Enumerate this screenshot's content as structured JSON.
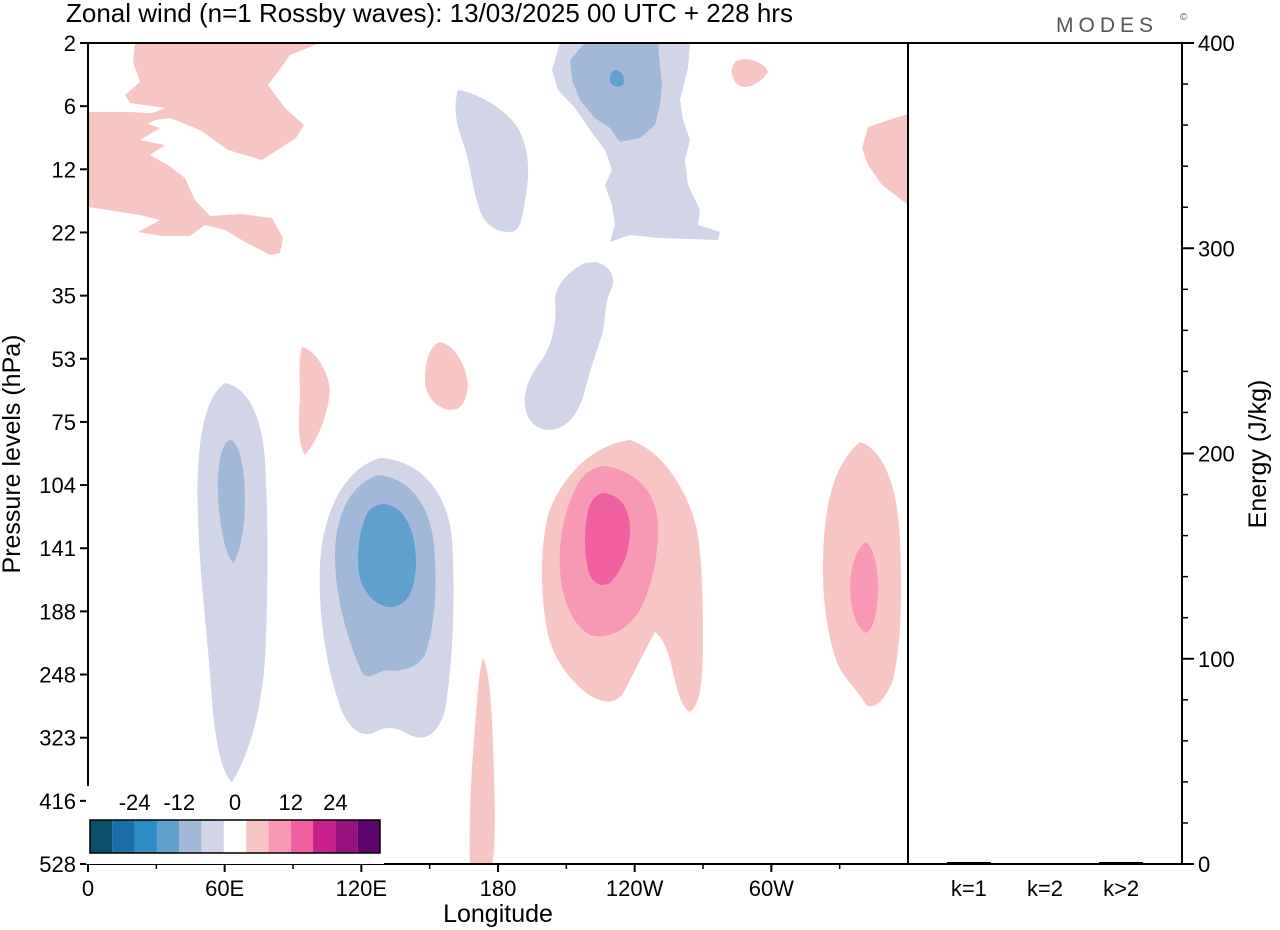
{
  "chart_data": {
    "type": "contour",
    "title": "Zonal wind (n=1 Rossby waves):  13/03/2025  00 UTC  + 228 hrs",
    "brand": "MODES",
    "brand_mark": "©",
    "xlabel": "Longitude",
    "ylabel": "Pressure levels (hPa)",
    "y2label": "Energy (J/kg)",
    "x_ticks": [
      "0",
      "60E",
      "120E",
      "180",
      "120W",
      "60W"
    ],
    "x_tick_degrees": [
      0,
      60,
      120,
      180,
      240,
      300
    ],
    "x_range_degrees": [
      0,
      360
    ],
    "y_ticks": [
      "2",
      "6",
      "12",
      "22",
      "35",
      "53",
      "75",
      "104",
      "141",
      "188",
      "248",
      "323",
      "416",
      "528"
    ],
    "y_order": "top-to-bottom",
    "colorbar": {
      "labels": [
        "-24",
        "-12",
        "0",
        "12",
        "24"
      ],
      "label_values": [
        -24,
        -12,
        0,
        12,
        24
      ],
      "levels": [
        -30,
        -24,
        -18,
        -12,
        -6,
        -3,
        3,
        6,
        12,
        18,
        24,
        30
      ],
      "colors": [
        "#0b4f6c",
        "#1b6ea6",
        "#2d8cc4",
        "#62a0cc",
        "#a2b8d8",
        "#d2d4e8",
        "#ffffff",
        "#f8c5c5",
        "#f799b5",
        "#f060a0",
        "#c8208c",
        "#96107e",
        "#5c046c"
      ]
    },
    "features": [
      {
        "sign": "negative",
        "max_abs": 12,
        "lon": [
          60,
          72
        ],
        "p": [
          75,
          416
        ]
      },
      {
        "sign": "negative",
        "max_abs": 18,
        "lon": [
          105,
          160
        ],
        "p": [
          90,
          300
        ]
      },
      {
        "sign": "negative",
        "max_abs": 3,
        "lon": [
          160,
          195
        ],
        "p": [
          5,
          20
        ]
      },
      {
        "sign": "negative",
        "max_abs": 3,
        "lon": [
          190,
          230
        ],
        "p": [
          30,
          80
        ]
      },
      {
        "sign": "negative",
        "max_abs": 12,
        "lon": [
          200,
          265
        ],
        "p": [
          2,
          20
        ]
      },
      {
        "sign": "positive",
        "max_abs": 18,
        "lon": [
          200,
          270
        ],
        "p": [
          90,
          330
        ]
      },
      {
        "sign": "positive",
        "max_abs": 12,
        "lon": [
          325,
          355
        ],
        "p": [
          110,
          300
        ]
      },
      {
        "sign": "positive",
        "max_abs": 3,
        "lon": [
          0,
          90
        ],
        "p": [
          2,
          22
        ]
      },
      {
        "sign": "positive",
        "max_abs": 3,
        "lon": [
          95,
          110
        ],
        "p": [
          50,
          100
        ]
      },
      {
        "sign": "positive",
        "max_abs": 3,
        "lon": [
          145,
          165
        ],
        "p": [
          50,
          80
        ]
      },
      {
        "sign": "positive",
        "max_abs": 3,
        "lon": [
          167,
          178
        ],
        "p": [
          250,
          528
        ]
      },
      {
        "sign": "positive",
        "max_abs": 3,
        "lon": [
          340,
          360
        ],
        "p": [
          7,
          20
        ]
      }
    ],
    "energy_panel": {
      "type": "bar",
      "categories": [
        "k=1",
        "k=2",
        "k>2"
      ],
      "values": [
        0.5,
        0,
        0.5
      ],
      "ylim": [
        0,
        400
      ],
      "y_ticks": [
        "0",
        "100",
        "200",
        "300",
        "400"
      ]
    }
  }
}
